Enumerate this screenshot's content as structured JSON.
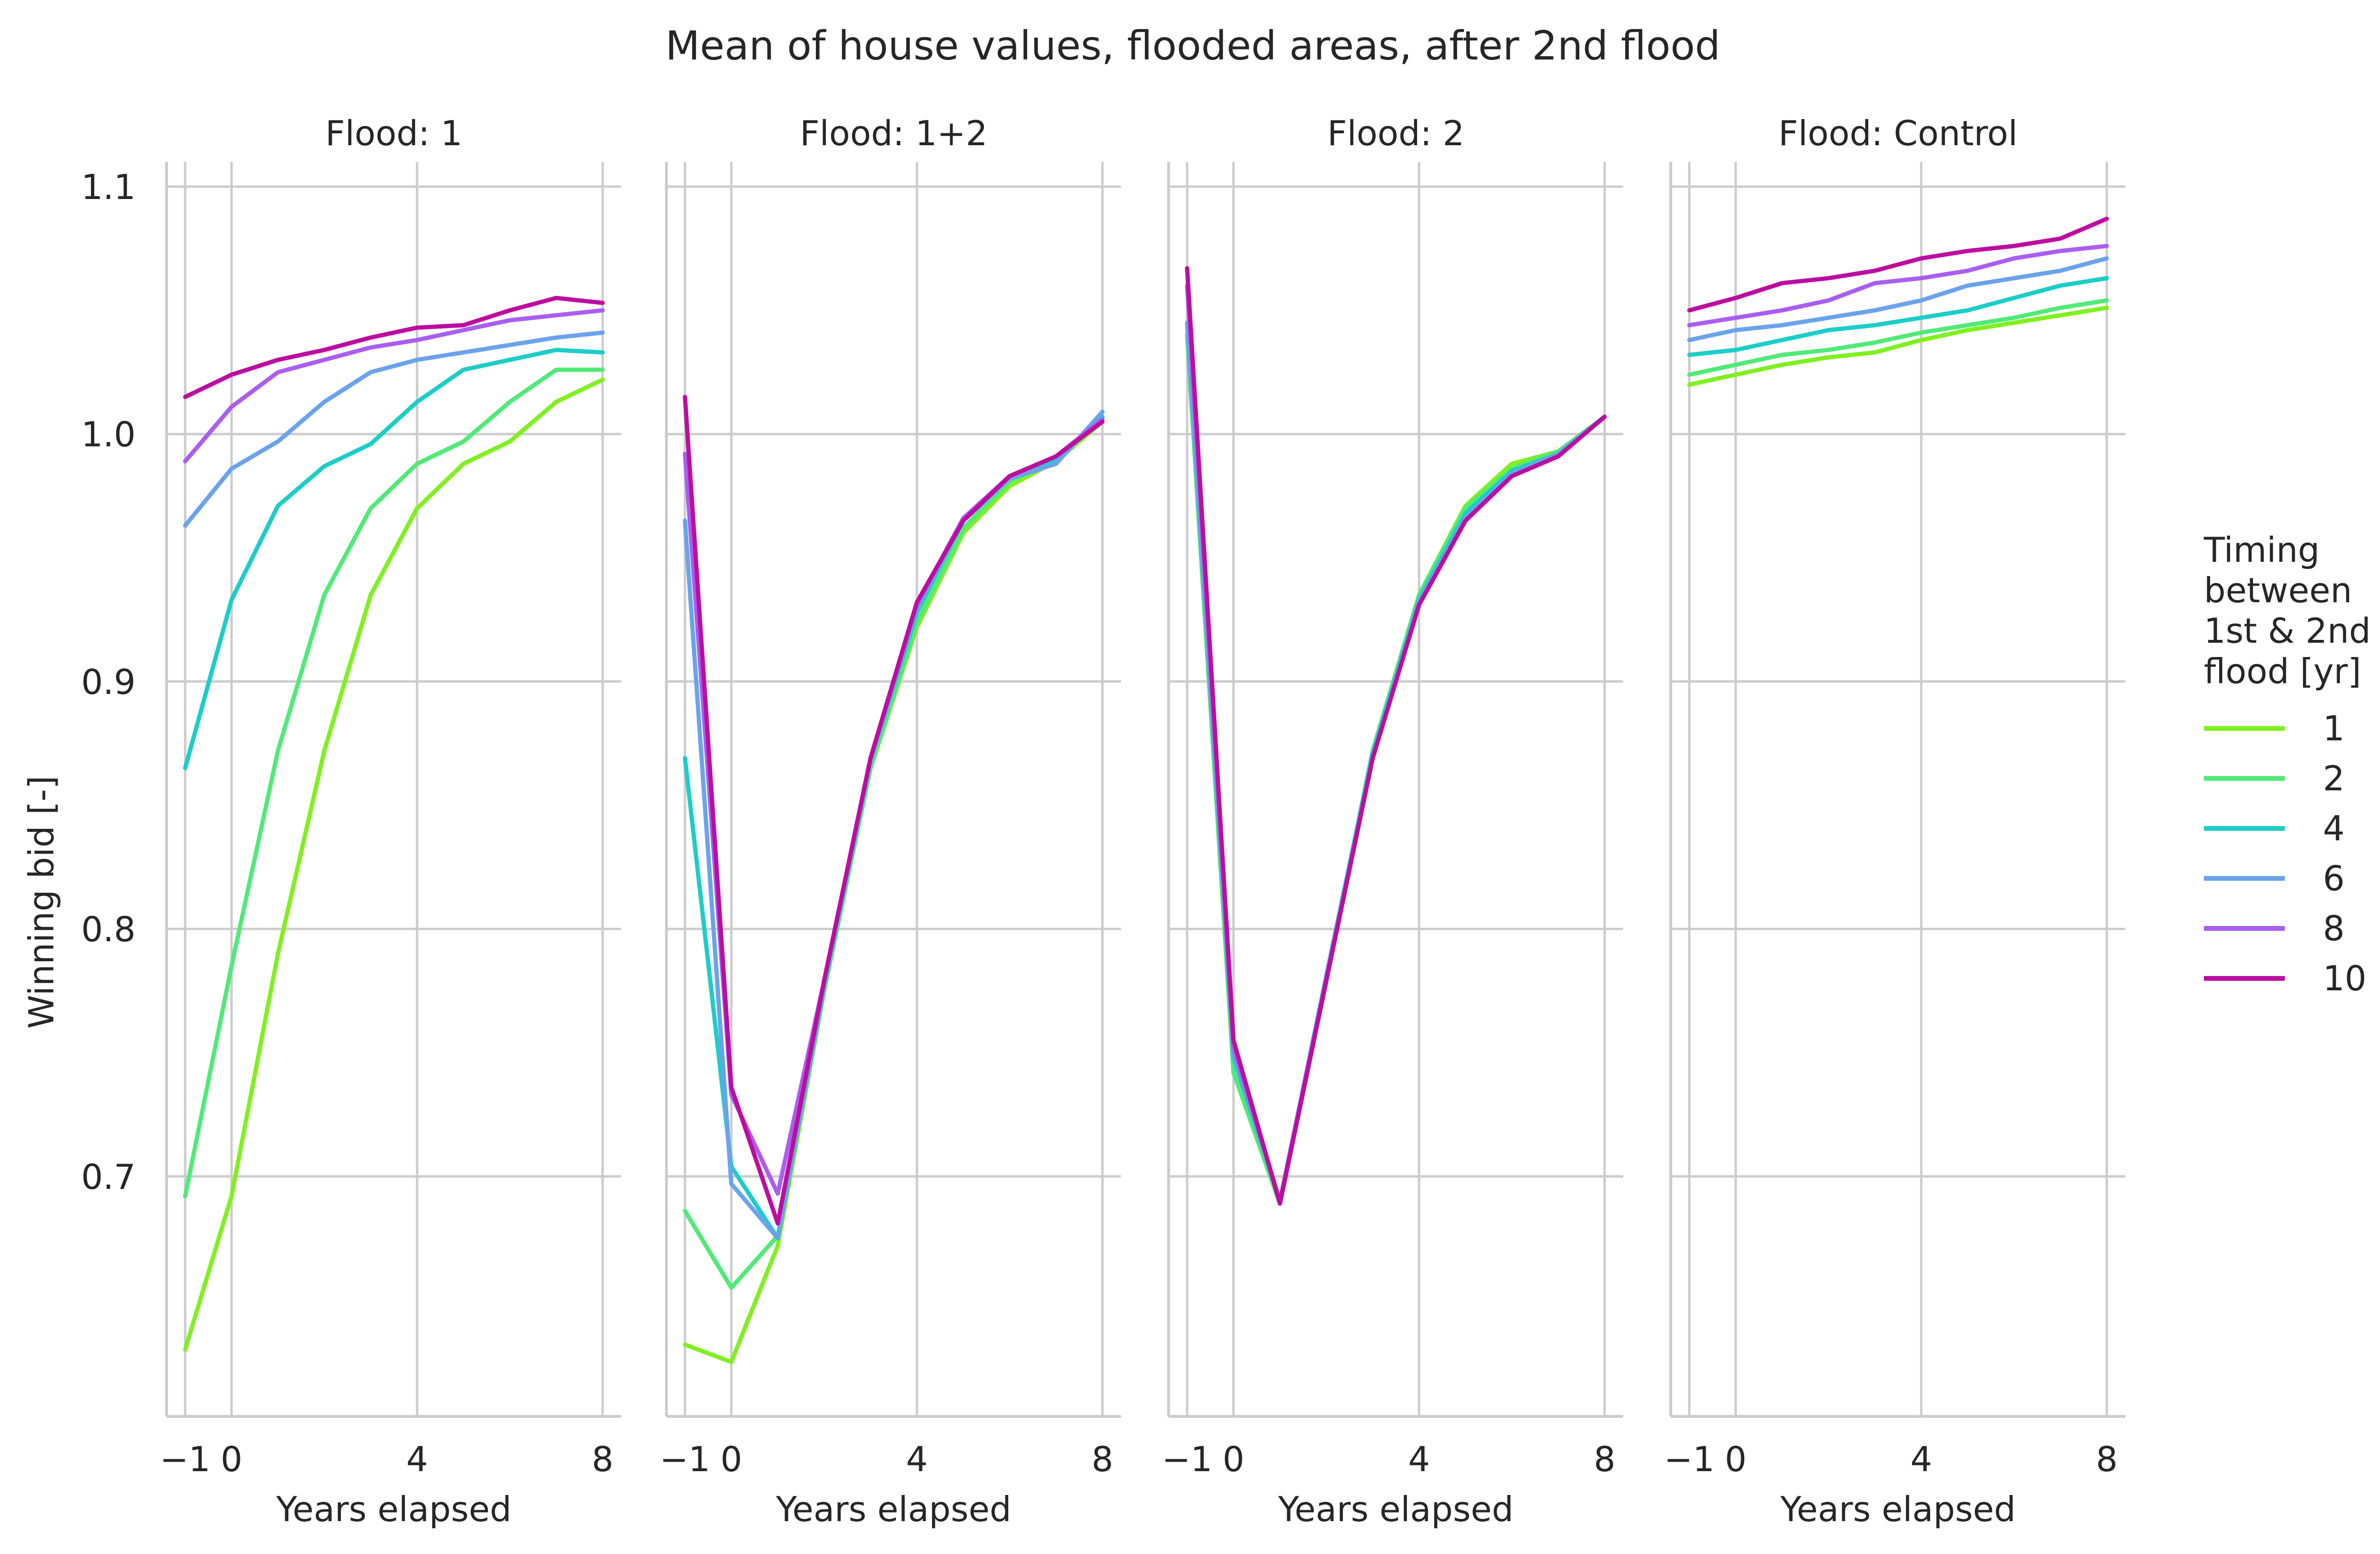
{
  "chart_data": {
    "type": "line",
    "title": "Mean of house values, flooded areas, after 2nd flood",
    "xlabel": "Years elapsed",
    "ylabel": "Winning bid [-]",
    "xlim": [
      -1.4,
      8.4
    ],
    "ylim": [
      0.603,
      1.11
    ],
    "xticks": [
      -1,
      0,
      4,
      8
    ],
    "xtick_labels": [
      "−1",
      "0",
      "4",
      "8"
    ],
    "yticks": [
      0.7,
      0.8,
      0.9,
      1.0,
      1.1
    ],
    "ytick_labels": [
      "0.7",
      "0.8",
      "0.9",
      "1.0",
      "1.1"
    ],
    "grid": true,
    "legend": {
      "title_lines": [
        "Timing",
        "between",
        "1st & 2nd",
        "flood [yr]"
      ],
      "placement": "right"
    },
    "series_styles": [
      {
        "name": "1",
        "color": "#80f020"
      },
      {
        "name": "2",
        "color": "#50ea78"
      },
      {
        "name": "4",
        "color": "#1ccdc8"
      },
      {
        "name": "6",
        "color": "#6aa3ec"
      },
      {
        "name": "8",
        "color": "#a95ef0"
      },
      {
        "name": "10",
        "color": "#bd0da0"
      }
    ],
    "panels": [
      {
        "title": "Flood: 1",
        "series": [
          {
            "name": "1",
            "x": [
              -1,
              0,
              1,
              2,
              3,
              4,
              5,
              6,
              7,
              8
            ],
            "values": [
              0.63,
              0.692,
              0.79,
              0.872,
              0.935,
              0.97,
              0.988,
              0.997,
              1.013,
              1.022
            ]
          },
          {
            "name": "2",
            "x": [
              -1,
              0,
              1,
              2,
              3,
              4,
              5,
              6,
              7,
              8
            ],
            "values": [
              0.692,
              0.785,
              0.872,
              0.935,
              0.97,
              0.988,
              0.997,
              1.013,
              1.026,
              1.026
            ]
          },
          {
            "name": "4",
            "x": [
              -1,
              0,
              1,
              2,
              3,
              4,
              5,
              6,
              7,
              8
            ],
            "values": [
              0.865,
              0.933,
              0.971,
              0.987,
              0.996,
              1.013,
              1.026,
              1.03,
              1.034,
              1.033
            ]
          },
          {
            "name": "6",
            "x": [
              -1,
              0,
              1,
              2,
              3,
              4,
              5,
              6,
              7,
              8
            ],
            "values": [
              0.963,
              0.986,
              0.997,
              1.013,
              1.025,
              1.03,
              1.033,
              1.036,
              1.039,
              1.041
            ]
          },
          {
            "name": "8",
            "x": [
              -1,
              0,
              1,
              2,
              3,
              4,
              5,
              6,
              7,
              8
            ],
            "values": [
              0.989,
              1.011,
              1.025,
              1.03,
              1.035,
              1.038,
              1.042,
              1.046,
              1.048,
              1.05
            ]
          },
          {
            "name": "10",
            "x": [
              -1,
              0,
              1,
              2,
              3,
              4,
              5,
              6,
              7,
              8
            ],
            "values": [
              1.015,
              1.024,
              1.03,
              1.034,
              1.039,
              1.043,
              1.044,
              1.05,
              1.055,
              1.053
            ]
          }
        ]
      },
      {
        "title": "Flood: 1+2",
        "series": [
          {
            "name": "1",
            "x": [
              -1,
              0,
              1,
              2,
              3,
              4,
              5,
              6,
              7,
              8
            ],
            "values": [
              0.632,
              0.625,
              0.672,
              0.775,
              0.865,
              0.922,
              0.96,
              0.979,
              0.989,
              1.005
            ]
          },
          {
            "name": "2",
            "x": [
              -1,
              0,
              1,
              2,
              3,
              4,
              5,
              6,
              7,
              8
            ],
            "values": [
              0.686,
              0.655,
              0.676,
              0.775,
              0.865,
              0.924,
              0.962,
              0.981,
              0.99,
              1.006
            ]
          },
          {
            "name": "4",
            "x": [
              -1,
              0,
              1,
              2,
              3,
              4,
              5,
              6,
              7,
              8
            ],
            "values": [
              0.869,
              0.704,
              0.675,
              0.777,
              0.868,
              0.928,
              0.965,
              0.982,
              0.989,
              1.007
            ]
          },
          {
            "name": "6",
            "x": [
              -1,
              0,
              1,
              2,
              3,
              4,
              5,
              6,
              7,
              8
            ],
            "values": [
              0.965,
              0.697,
              0.675,
              0.778,
              0.868,
              0.93,
              0.965,
              0.982,
              0.988,
              1.009
            ]
          },
          {
            "name": "8",
            "x": [
              -1,
              0,
              1,
              2,
              3,
              4,
              5,
              6,
              7,
              8
            ],
            "values": [
              0.992,
              0.733,
              0.693,
              0.779,
              0.869,
              0.931,
              0.966,
              0.983,
              0.991,
              1.006
            ]
          },
          {
            "name": "10",
            "x": [
              -1,
              0,
              1,
              2,
              3,
              4,
              5,
              6,
              7,
              8
            ],
            "values": [
              1.015,
              0.736,
              0.681,
              0.779,
              0.869,
              0.932,
              0.965,
              0.983,
              0.991,
              1.005
            ]
          }
        ]
      },
      {
        "title": "Flood: 2",
        "series": [
          {
            "name": "1",
            "x": [
              -1,
              0,
              1,
              2,
              3,
              4,
              5,
              6,
              7,
              8
            ],
            "values": [
              1.04,
              0.742,
              0.689,
              0.779,
              0.872,
              0.935,
              0.971,
              0.988,
              0.993,
              1.007
            ]
          },
          {
            "name": "2",
            "x": [
              -1,
              0,
              1,
              2,
              3,
              4,
              5,
              6,
              7,
              8
            ],
            "values": [
              1.04,
              0.742,
              0.689,
              0.779,
              0.872,
              0.935,
              0.97,
              0.986,
              0.993,
              1.007
            ]
          },
          {
            "name": "4",
            "x": [
              -1,
              0,
              1,
              2,
              3,
              4,
              5,
              6,
              7,
              8
            ],
            "values": [
              1.045,
              0.748,
              0.69,
              0.781,
              0.871,
              0.933,
              0.968,
              0.985,
              0.992,
              1.007
            ]
          },
          {
            "name": "6",
            "x": [
              -1,
              0,
              1,
              2,
              3,
              4,
              5,
              6,
              7,
              8
            ],
            "values": [
              1.045,
              0.75,
              0.69,
              0.78,
              0.869,
              0.932,
              0.966,
              0.984,
              0.992,
              1.007
            ]
          },
          {
            "name": "8",
            "x": [
              -1,
              0,
              1,
              2,
              3,
              4,
              5,
              6,
              7,
              8
            ],
            "values": [
              1.06,
              0.752,
              0.69,
              0.78,
              0.869,
              0.931,
              0.965,
              0.983,
              0.991,
              1.007
            ]
          },
          {
            "name": "10",
            "x": [
              -1,
              0,
              1,
              2,
              3,
              4,
              5,
              6,
              7,
              8
            ],
            "values": [
              1.067,
              0.755,
              0.689,
              0.779,
              0.869,
              0.931,
              0.965,
              0.983,
              0.991,
              1.007
            ]
          }
        ]
      },
      {
        "title": "Flood: Control",
        "series": [
          {
            "name": "1",
            "x": [
              -1,
              0,
              1,
              2,
              3,
              4,
              5,
              6,
              7,
              8
            ],
            "values": [
              1.02,
              1.024,
              1.028,
              1.031,
              1.033,
              1.038,
              1.042,
              1.045,
              1.048,
              1.051
            ]
          },
          {
            "name": "2",
            "x": [
              -1,
              0,
              1,
              2,
              3,
              4,
              5,
              6,
              7,
              8
            ],
            "values": [
              1.024,
              1.028,
              1.032,
              1.034,
              1.037,
              1.041,
              1.044,
              1.047,
              1.051,
              1.054
            ]
          },
          {
            "name": "4",
            "x": [
              -1,
              0,
              1,
              2,
              3,
              4,
              5,
              6,
              7,
              8
            ],
            "values": [
              1.032,
              1.034,
              1.038,
              1.042,
              1.044,
              1.047,
              1.05,
              1.055,
              1.06,
              1.063
            ]
          },
          {
            "name": "6",
            "x": [
              -1,
              0,
              1,
              2,
              3,
              4,
              5,
              6,
              7,
              8
            ],
            "values": [
              1.038,
              1.042,
              1.044,
              1.047,
              1.05,
              1.054,
              1.06,
              1.063,
              1.066,
              1.071
            ]
          },
          {
            "name": "8",
            "x": [
              -1,
              0,
              1,
              2,
              3,
              4,
              5,
              6,
              7,
              8
            ],
            "values": [
              1.044,
              1.047,
              1.05,
              1.054,
              1.061,
              1.063,
              1.066,
              1.071,
              1.074,
              1.076
            ]
          },
          {
            "name": "10",
            "x": [
              -1,
              0,
              1,
              2,
              3,
              4,
              5,
              6,
              7,
              8
            ],
            "values": [
              1.05,
              1.055,
              1.061,
              1.063,
              1.066,
              1.071,
              1.074,
              1.076,
              1.079,
              1.087
            ]
          }
        ]
      }
    ]
  }
}
